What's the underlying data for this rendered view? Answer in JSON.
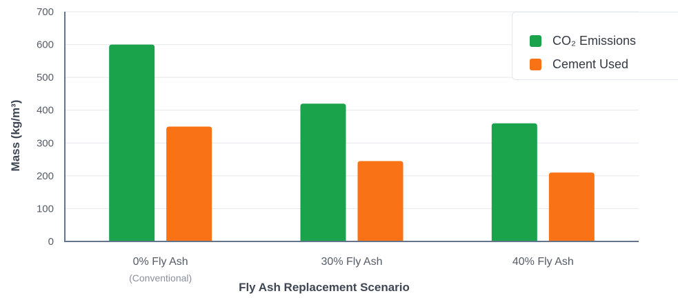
{
  "chart_data": {
    "type": "bar",
    "title": "",
    "xlabel": "Fly Ash Replacement Scenario",
    "ylabel": "Mass (kg/m³)",
    "ylim": [
      0,
      700
    ],
    "yticks": [
      0,
      100,
      200,
      300,
      400,
      500,
      600,
      700
    ],
    "grid": true,
    "legend_position": "top-right",
    "categories": [
      "0% Fly Ash",
      "30% Fly Ash",
      "40% Fly Ash"
    ],
    "category_sublabels": [
      "(Conventional)",
      "",
      ""
    ],
    "series": [
      {
        "name": "CO₂ Emissions",
        "values": [
          600,
          420,
          360
        ],
        "color": "#1aa34a"
      },
      {
        "name": "Cement Used",
        "values": [
          350,
          245,
          210
        ],
        "color": "#f97316"
      }
    ]
  },
  "colors": {
    "axis": "#64748b",
    "grid": "#e5e7eb",
    "tick_text": "#555b66",
    "sublabel_text": "#8a909a",
    "axis_title": "#3f4654"
  }
}
